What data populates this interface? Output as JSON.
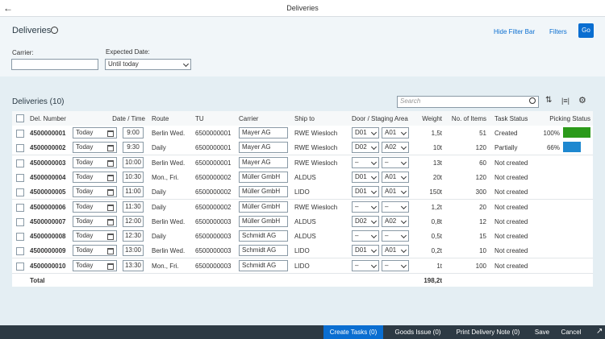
{
  "header": {
    "title": "Deliveries"
  },
  "filter_bar": {
    "title": "Deliveries",
    "actions": [
      "Hide Filter Bar",
      "Filters",
      "Go"
    ],
    "carrier_label": "Carrier:",
    "date_label": "Expected Date:",
    "date_value": "Until today"
  },
  "table": {
    "title": "Deliveries (10)",
    "search_placeholder": "Search",
    "columns": [
      "Del. Number",
      "Date / Time",
      "Route",
      "TU",
      "Carrier",
      "Ship to",
      "Door / Staging Area",
      "Weight",
      "No. of Items",
      "Task Status",
      "Picking Status"
    ],
    "rows": [
      {
        "number": "4500000001",
        "date": "Today",
        "time": "9:00",
        "route": "Berlin Wed.",
        "tu": "6500000001",
        "carrier": "Mayer AG",
        "ship_to": "RWE Wiesloch",
        "door": "D01",
        "staging": "A01",
        "weight": "1,5t",
        "items": 51,
        "status": "Created",
        "picking": {
          "value": 100,
          "label": "100%"
        },
        "picking_color": "#2b9a1a"
      },
      {
        "number": "4500000002",
        "date": "Today",
        "time": "9:30",
        "route": "Daily",
        "tu": "6500000001",
        "carrier": "Mayer AG",
        "ship_to": "RWE Wiesloch",
        "door": "D02",
        "staging": "A02",
        "weight": "10t",
        "items": 120,
        "status": "Partially",
        "picking": {
          "value": 66,
          "label": "66%"
        },
        "picking_color": "#1e88d0"
      },
      {
        "number": "4500000003",
        "date": "Today",
        "time": "10:00",
        "route": "Berlin Wed.",
        "tu": "6500000001",
        "carrier": "Mayer AG",
        "ship_to": "RWE Wiesloch",
        "door": "–",
        "staging": "–",
        "weight": "13t",
        "items": 60,
        "status": "Not created",
        "picking": null
      },
      {
        "number": "4500000004",
        "date": "Today",
        "time": "10:30",
        "route": "Mon., Fri.",
        "tu": "6500000002",
        "carrier": "Müller GmbH",
        "ship_to": "ALDUS",
        "door": "D01",
        "staging": "A01",
        "weight": "20t",
        "items": 120,
        "status": "Not created",
        "picking": null
      },
      {
        "number": "4500000005",
        "date": "Today",
        "time": "11:00",
        "route": "Daily",
        "tu": "6500000002",
        "carrier": "Müller GmbH",
        "ship_to": "LIDO",
        "door": "D01",
        "staging": "A01",
        "weight": "150t",
        "items": 300,
        "status": "Not created",
        "picking": null
      },
      {
        "number": "4500000006",
        "date": "Today",
        "time": "11:30",
        "route": "Daily",
        "tu": "6500000002",
        "carrier": "Müller GmbH",
        "ship_to": "RWE Wiesloch",
        "door": "–",
        "staging": "–",
        "weight": "1,2t",
        "items": 20,
        "status": "Not created",
        "picking": null
      },
      {
        "number": "4500000007",
        "date": "Today",
        "time": "12:00",
        "route": "Berlin Wed.",
        "tu": "6500000003",
        "carrier": "Müller GmbH",
        "ship_to": "ALDUS",
        "door": "D02",
        "staging": "A02",
        "weight": "0,8t",
        "items": 12,
        "status": "Not created",
        "picking": null
      },
      {
        "number": "4500000008",
        "date": "Today",
        "time": "12:30",
        "route": "Daily",
        "tu": "6500000003",
        "carrier": "Schmidt AG",
        "ship_to": "ALDUS",
        "door": "–",
        "staging": "–",
        "weight": "0,5t",
        "items": 15,
        "status": "Not created",
        "picking": null
      },
      {
        "number": "4500000009",
        "date": "Today",
        "time": "13:00",
        "route": "Berlin Wed.",
        "tu": "6500000003",
        "carrier": "Schmidt AG",
        "ship_to": "LIDO",
        "door": "D01",
        "staging": "A01",
        "weight": "0,2t",
        "items": 10,
        "status": "Not created",
        "picking": null
      },
      {
        "number": "4500000010",
        "date": "Today",
        "time": "13:30",
        "route": "Mon., Fri.",
        "tu": "6500000003",
        "carrier": "Schmidt AG",
        "ship_to": "LIDO",
        "door": "–",
        "staging": "–",
        "weight": "1t",
        "items": 100,
        "status": "Not created",
        "picking": null
      }
    ],
    "total_label": "Total",
    "total_weight": "198,2t"
  },
  "footer": {
    "buttons": [
      "Create Tasks (0)",
      "Goods Issue (0)",
      "Print Delivery Note (0)",
      "Save",
      "Cancel"
    ]
  }
}
